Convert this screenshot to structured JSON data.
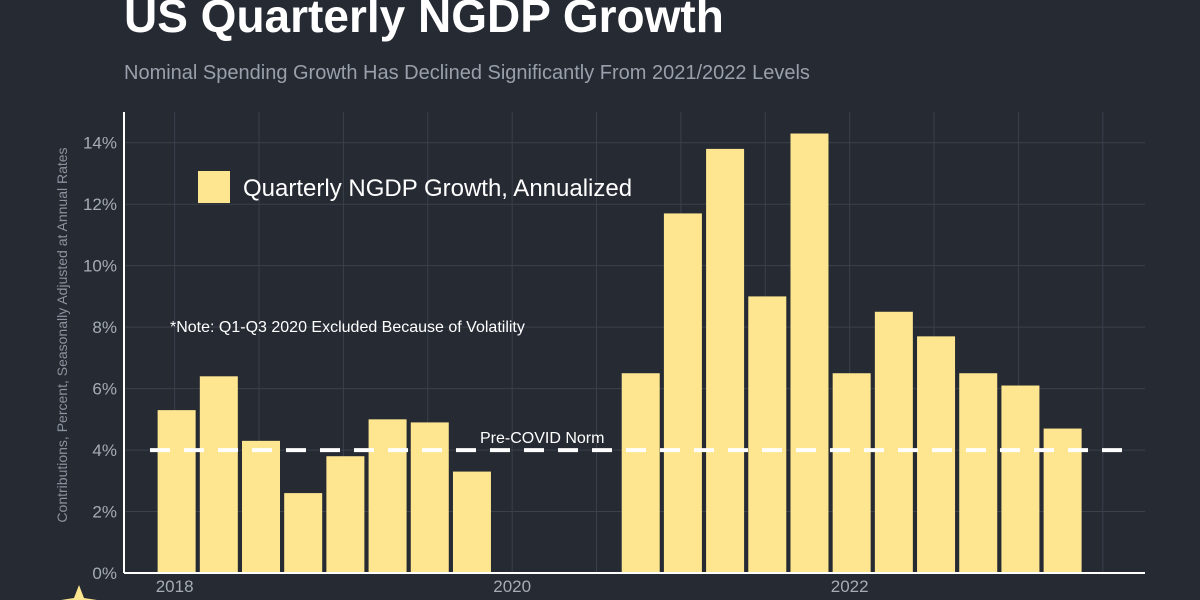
{
  "title": "US Quarterly NGDP Growth",
  "subtitle": "Nominal Spending Growth Has Declined Significantly From 2021/2022 Levels",
  "colors": {
    "background": "#252a33",
    "bar": "#fde68f",
    "grid": "#3b404b",
    "axis": "#ffffff",
    "reference_line": "#ffffff"
  },
  "chart_data": {
    "type": "bar",
    "title": "US Quarterly NGDP Growth",
    "ylabel": "Contributions, Percent, Seasonally Adjusted at Annual Rates",
    "xlabel": "",
    "ylim": [
      0,
      15
    ],
    "yticks": [
      0,
      2,
      4,
      6,
      8,
      10,
      12,
      14
    ],
    "ytick_format": "%",
    "xlim": [
      2017.7,
      2023.75
    ],
    "xticks": [
      {
        "value": 2018.0,
        "label": "2018"
      },
      {
        "value": 2020.0,
        "label": "2020"
      },
      {
        "value": 2022.0,
        "label": "2022"
      }
    ],
    "legend": {
      "label": "Quarterly NGDP Growth, Annualized",
      "position": "top-left"
    },
    "note": "*Note: Q1-Q3 2020 Excluded Because of Volatility",
    "reference_line": {
      "value": 4,
      "label": "Pre-COVID Norm",
      "style": "dashed"
    },
    "series": [
      {
        "name": "Quarterly NGDP Growth, Annualized",
        "x": [
          2018.0,
          2018.25,
          2018.5,
          2018.75,
          2019.0,
          2019.25,
          2019.5,
          2019.75,
          2020.75,
          2021.0,
          2021.25,
          2021.5,
          2021.75,
          2022.0,
          2022.25,
          2022.5,
          2022.75,
          2023.0,
          2023.25
        ],
        "periods": [
          "2018 Q1",
          "2018 Q2",
          "2018 Q3",
          "2018 Q4",
          "2019 Q1",
          "2019 Q2",
          "2019 Q3",
          "2019 Q4",
          "2020 Q4",
          "2021 Q1",
          "2021 Q2",
          "2021 Q3",
          "2021 Q4",
          "2022 Q1",
          "2022 Q2",
          "2022 Q3",
          "2022 Q4",
          "2023 Q1",
          "2023 Q2"
        ],
        "values": [
          5.3,
          6.4,
          4.3,
          2.6,
          3.8,
          5.0,
          4.9,
          3.3,
          6.5,
          11.7,
          13.8,
          9.0,
          14.3,
          6.5,
          8.5,
          7.7,
          6.5,
          6.1,
          4.7
        ]
      }
    ]
  }
}
